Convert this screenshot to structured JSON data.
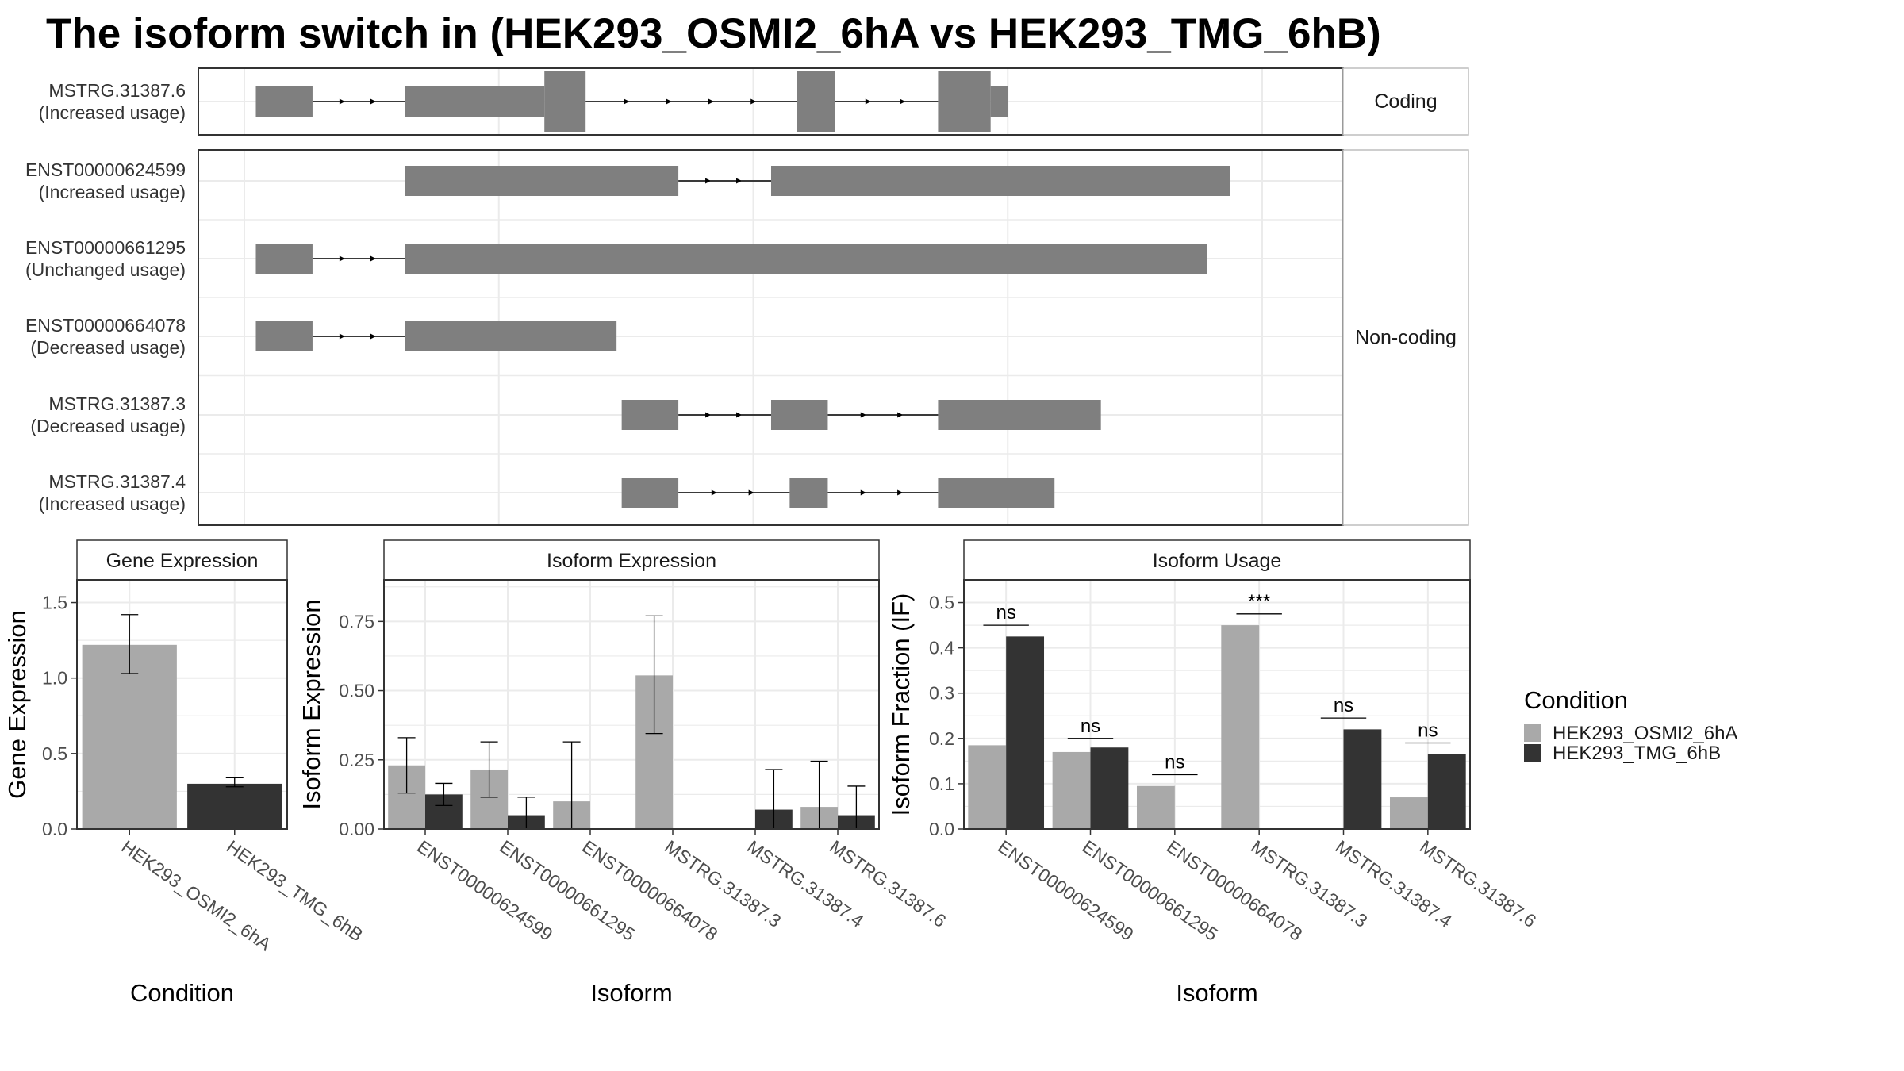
{
  "title": "The isoform switch in  (HEK293_OSMI2_6hA vs HEK293_TMG_6hB)",
  "colors": {
    "exon": "#7f7f7f",
    "condition_a": "#a9a9a9",
    "condition_b": "#333333",
    "grid": "#ebebeb",
    "panel_border": "#333333",
    "strip_bg": "#ffffff"
  },
  "chart_data": [
    {
      "type": "gene-structure",
      "x_range": [
        0,
        1000
      ],
      "groups": [
        {
          "label": "Coding",
          "isoforms": [
            {
              "name": "MSTRG.31387.6",
              "usage": "(Increased usage)",
              "exons": [
                [
                  5,
                  60,
                  "utr"
                ],
                [
                  150,
                  285,
                  "utr"
                ],
                [
                  285,
                  325,
                  "cds"
                ],
                [
                  530,
                  567,
                  "cds"
                ],
                [
                  667,
                  718,
                  "cds"
                ],
                [
                  718,
                  735,
                  "utr"
                ]
              ]
            }
          ]
        },
        {
          "label": "Non-coding",
          "isoforms": [
            {
              "name": "ENST00000624599",
              "usage": "(Increased usage)",
              "exons": [
                [
                  150,
                  415,
                  "utr"
                ],
                [
                  505,
                  950,
                  "utr"
                ]
              ]
            },
            {
              "name": "ENST00000661295",
              "usage": "(Unchanged usage)",
              "exons": [
                [
                  5,
                  60,
                  "utr"
                ],
                [
                  150,
                  928,
                  "utr"
                ]
              ]
            },
            {
              "name": "ENST00000664078",
              "usage": "(Decreased usage)",
              "exons": [
                [
                  5,
                  60,
                  "utr"
                ],
                [
                  150,
                  355,
                  "utr"
                ]
              ]
            },
            {
              "name": "MSTRG.31387.3",
              "usage": "(Decreased usage)",
              "exons": [
                [
                  360,
                  415,
                  "utr"
                ],
                [
                  505,
                  560,
                  "utr"
                ],
                [
                  667,
                  825,
                  "utr"
                ]
              ]
            },
            {
              "name": "MSTRG.31387.4",
              "usage": "(Increased usage)",
              "exons": [
                [
                  360,
                  415,
                  "utr"
                ],
                [
                  523,
                  560,
                  "utr"
                ],
                [
                  667,
                  780,
                  "utr"
                ]
              ]
            }
          ]
        }
      ]
    },
    {
      "type": "bar",
      "strip": "Gene Expression",
      "xlabel": "Condition",
      "ylabel": "Gene Expression",
      "ylim": [
        0,
        1.65
      ],
      "yticks": [
        "0.0",
        "0.5",
        "1.0",
        "1.5"
      ],
      "categories": [
        "HEK293_OSMI2_6hA",
        "HEK293_TMG_6hB"
      ],
      "values": [
        1.22,
        0.3
      ],
      "errors": [
        [
          1.03,
          1.42
        ],
        [
          0.28,
          0.34
        ]
      ],
      "condition_index": [
        0,
        1
      ]
    },
    {
      "type": "bar",
      "strip": "Isoform Expression",
      "xlabel": "Isoform",
      "ylabel": "Isoform Expression",
      "ylim": [
        0,
        0.9
      ],
      "yticks": [
        "0.00",
        "0.25",
        "0.50",
        "0.75"
      ],
      "categories": [
        "ENST00000624599",
        "ENST00000661295",
        "ENST00000664078",
        "MSTRG.31387.3",
        "MSTRG.31387.4",
        "MSTRG.31387.6"
      ],
      "series": [
        {
          "name": "HEK293_OSMI2_6hA",
          "values": [
            0.23,
            0.215,
            0.1,
            0.555,
            0.0,
            0.08
          ],
          "errors": [
            [
              0.13,
              0.33
            ],
            [
              0.115,
              0.315
            ],
            [
              0.0,
              0.315
            ],
            [
              0.345,
              0.77
            ],
            null,
            [
              0.0,
              0.245
            ]
          ]
        },
        {
          "name": "HEK293_TMG_6hB",
          "values": [
            0.125,
            0.05,
            0.0,
            0.0,
            0.07,
            0.05
          ],
          "errors": [
            [
              0.085,
              0.165
            ],
            [
              0.0,
              0.115
            ],
            null,
            null,
            [
              0.0,
              0.215
            ],
            [
              0.0,
              0.155
            ]
          ]
        }
      ]
    },
    {
      "type": "bar",
      "strip": "Isoform Usage",
      "xlabel": "Isoform",
      "ylabel": "Isoform Fraction (IF)",
      "ylim": [
        0,
        0.55
      ],
      "yticks": [
        "0.0",
        "0.1",
        "0.2",
        "0.3",
        "0.4",
        "0.5"
      ],
      "categories": [
        "ENST00000624599",
        "ENST00000661295",
        "ENST00000664078",
        "MSTRG.31387.3",
        "MSTRG.31387.4",
        "MSTRG.31387.6"
      ],
      "series": [
        {
          "name": "HEK293_OSMI2_6hA",
          "values": [
            0.185,
            0.17,
            0.095,
            0.45,
            0.0,
            0.07
          ]
        },
        {
          "name": "HEK293_TMG_6hB",
          "values": [
            0.425,
            0.18,
            0.0,
            0.0,
            0.22,
            0.165
          ]
        }
      ],
      "significance": [
        {
          "label": "ns",
          "y": 0.45
        },
        {
          "label": "ns",
          "y": 0.2
        },
        {
          "label": "ns",
          "y": 0.12
        },
        {
          "label": "***",
          "y": 0.475
        },
        {
          "label": "ns",
          "y": 0.245
        },
        {
          "label": "ns",
          "y": 0.19
        }
      ]
    }
  ],
  "legend": {
    "title": "Condition",
    "position": "right",
    "entries": [
      "HEK293_OSMI2_6hA",
      "HEK293_TMG_6hB"
    ]
  }
}
